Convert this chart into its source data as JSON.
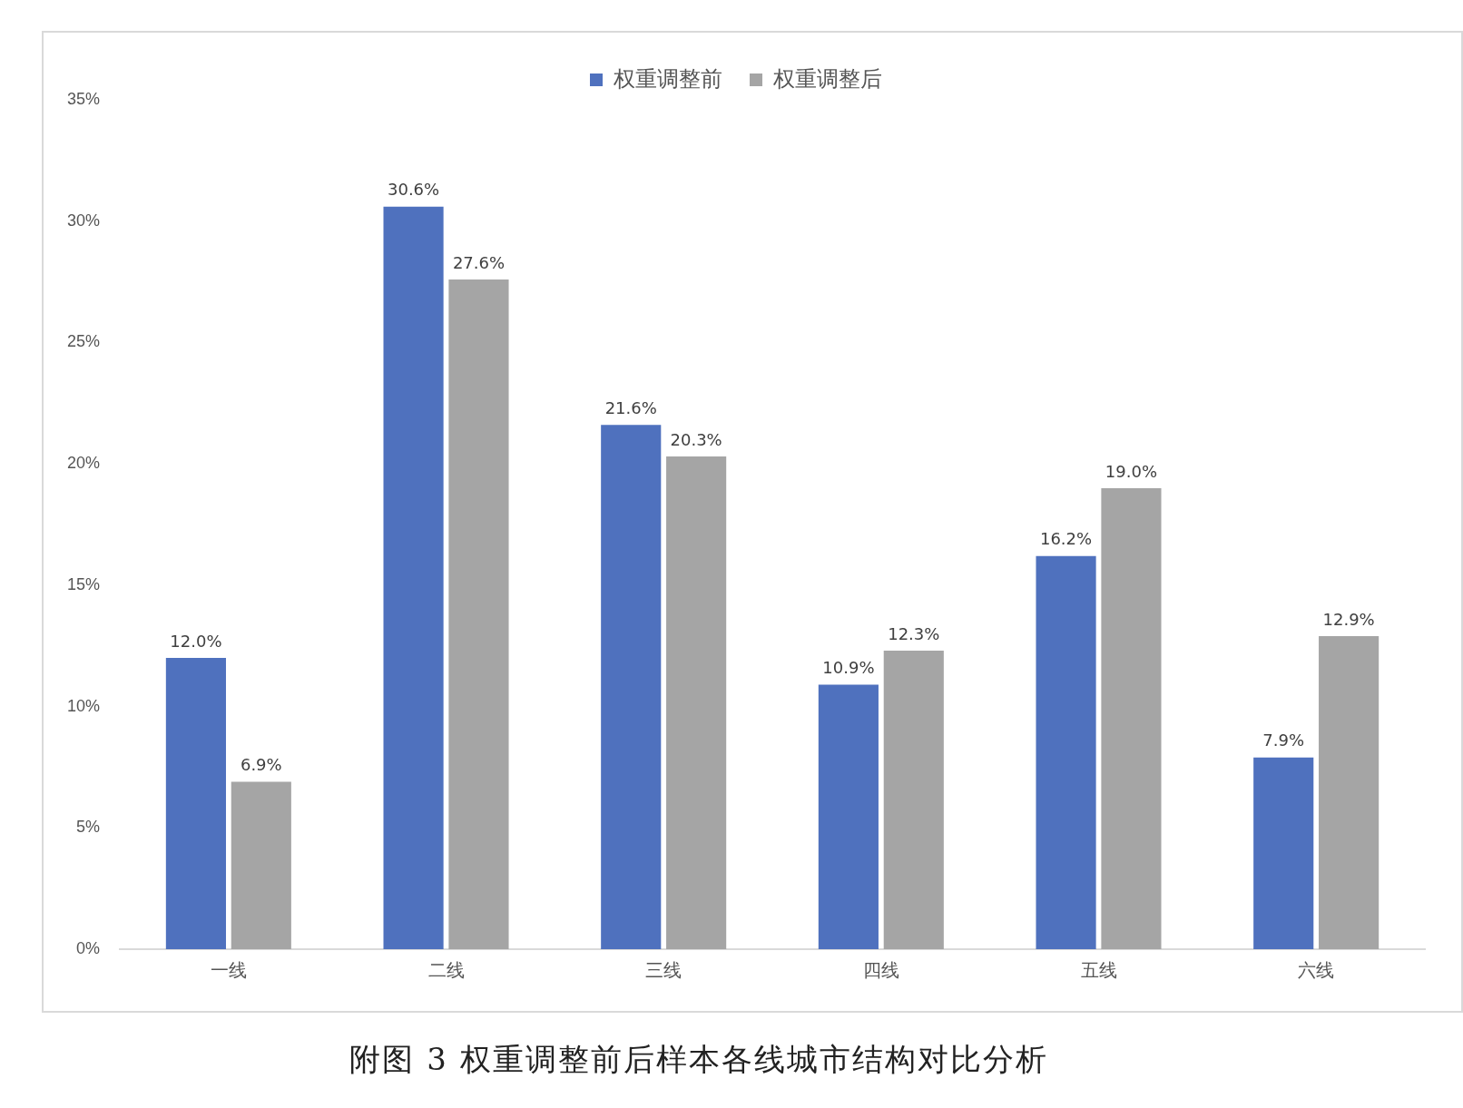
{
  "chart_data": {
    "type": "bar",
    "categories": [
      "一线",
      "二线",
      "三线",
      "四线",
      "五线",
      "六线"
    ],
    "series": [
      {
        "name": "权重调整前",
        "color": "#4f71be",
        "values": [
          12.0,
          30.6,
          21.6,
          10.9,
          16.2,
          7.9
        ],
        "value_labels": [
          "12.0%",
          "30.6%",
          "21.6%",
          "10.9%",
          "16.2%",
          "7.9%"
        ]
      },
      {
        "name": "权重调整后",
        "color": "#a5a5a5",
        "values": [
          6.9,
          27.6,
          20.3,
          12.3,
          19.0,
          12.9
        ],
        "value_labels": [
          "6.9%",
          "27.6%",
          "20.3%",
          "12.3%",
          "19.0%",
          "12.9%"
        ]
      }
    ],
    "ylim": [
      0,
      35
    ],
    "yticks": [
      {
        "value": 0,
        "label": "0%"
      },
      {
        "value": 5,
        "label": "5%"
      },
      {
        "value": 10,
        "label": "10%"
      },
      {
        "value": 15,
        "label": "15%"
      },
      {
        "value": 20,
        "label": "20%"
      },
      {
        "value": 25,
        "label": "25%"
      },
      {
        "value": 30,
        "label": "30%"
      },
      {
        "value": 35,
        "label": "35%"
      }
    ],
    "grid": false,
    "legend": "top",
    "annotations": [
      "附图 3 权重调整前后样本各线城市结构对比分析"
    ]
  }
}
